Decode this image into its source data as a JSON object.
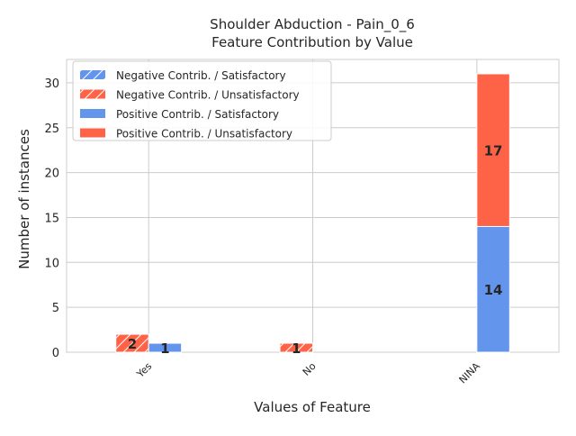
{
  "chart_data": {
    "type": "bar",
    "title": "Shoulder Abduction - Pain_0_6",
    "subtitle": "Feature Contribution by Value",
    "xlabel": "Values of Feature",
    "ylabel": "Number of instances",
    "categories": [
      "Yes",
      "No",
      "NINA"
    ],
    "ylim": [
      0,
      32.6
    ],
    "yticks": [
      0,
      5,
      10,
      15,
      20,
      25,
      30
    ],
    "grid": true,
    "legend_position": "top-left",
    "series": [
      {
        "name": "Negative Contrib. / Satisfactory",
        "group": "negative",
        "values": [
          0,
          0,
          0
        ],
        "color": "#6495ED",
        "hatch": true
      },
      {
        "name": "Negative Contrib. / Unsatisfactory",
        "group": "negative",
        "values": [
          2,
          1,
          0
        ],
        "color": "#FF6347",
        "hatch": true
      },
      {
        "name": "Positive Contrib. / Satisfactory",
        "group": "positive",
        "values": [
          1,
          0,
          14
        ],
        "color": "#6495ED",
        "hatch": false
      },
      {
        "name": "Positive Contrib. / Unsatisfactory",
        "group": "positive",
        "values": [
          0,
          0,
          17
        ],
        "color": "#FF6347",
        "hatch": false
      }
    ]
  }
}
